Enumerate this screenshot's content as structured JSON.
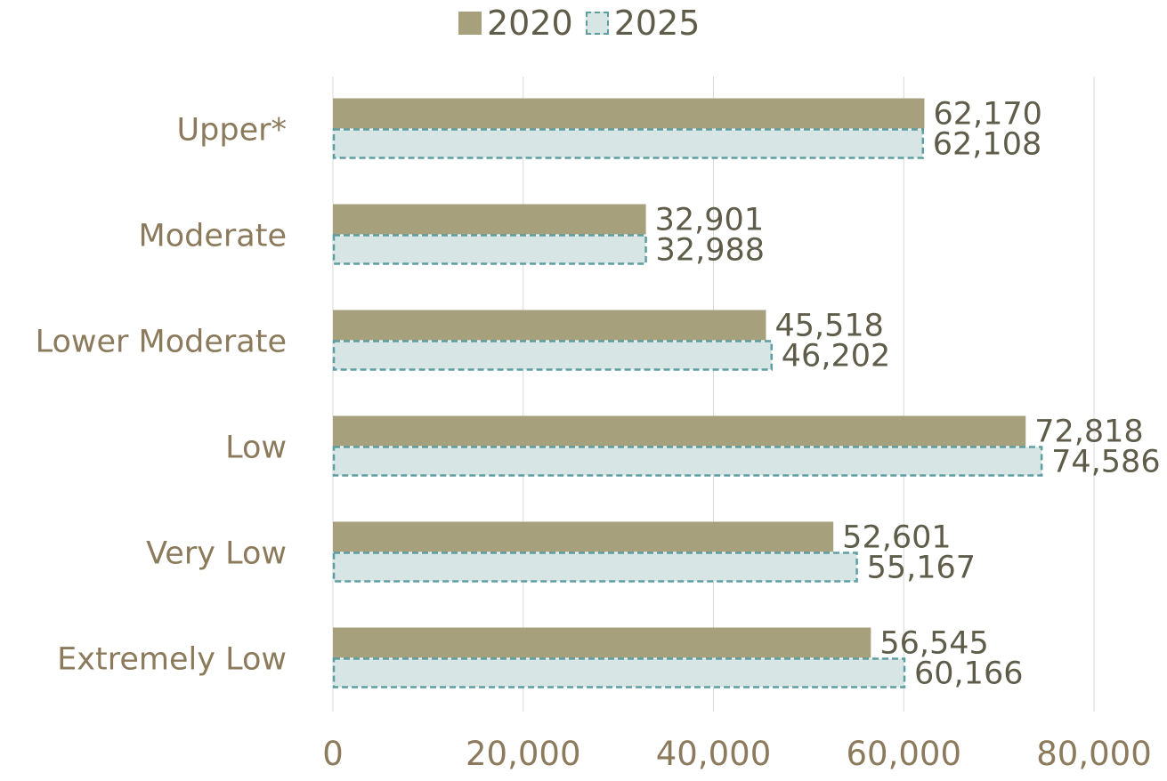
{
  "chart_data": {
    "type": "bar",
    "orientation": "horizontal",
    "categories": [
      "Upper*",
      "Moderate",
      "Lower Moderate",
      "Low",
      "Very Low",
      "Extremely Low"
    ],
    "series": [
      {
        "name": "2020",
        "values": [
          62170,
          32901,
          45518,
          72818,
          52601,
          56545
        ],
        "labels": [
          "62,170",
          "32,901",
          "45,518",
          "72,818",
          "52,601",
          "56,545"
        ],
        "color": "#a6a07c",
        "style": "solid"
      },
      {
        "name": "2025",
        "values": [
          62108,
          32988,
          46202,
          74586,
          55167,
          60166
        ],
        "labels": [
          "62,108",
          "32,988",
          "46,202",
          "74,586",
          "55,167",
          "60,166"
        ],
        "color": "#d7e6e4",
        "border_color": "#5f9ea0",
        "style": "dashed"
      }
    ],
    "xlim": [
      0,
      80000
    ],
    "xticks": [
      0,
      20000,
      40000,
      60000,
      80000
    ],
    "xtick_labels": [
      "0",
      "20,000",
      "40,000",
      "60,000",
      "80,000"
    ],
    "grid": "vertical",
    "legend": "top-center",
    "title": "",
    "xlabel": "",
    "ylabel": ""
  },
  "colors": {
    "category_text": "#8c7a5c",
    "value_text": "#5f5c4a",
    "gridline": "#d9d9d9"
  }
}
